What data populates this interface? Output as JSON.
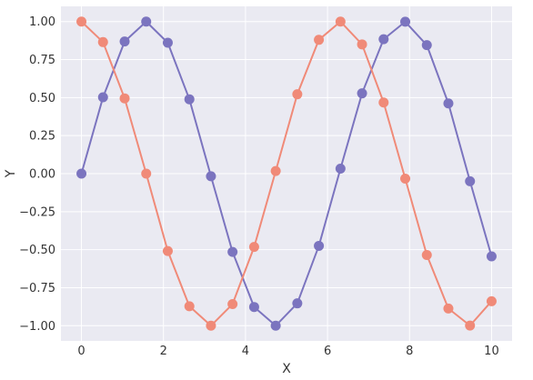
{
  "chart_data": {
    "type": "line",
    "xlabel": "X",
    "ylabel": "Y",
    "xlim": [
      -0.5,
      10.5
    ],
    "ylim": [
      -1.1,
      1.1
    ],
    "x_ticks": [
      0,
      2,
      4,
      6,
      8,
      10
    ],
    "x_tick_labels": [
      "0",
      "2",
      "4",
      "6",
      "8",
      "10"
    ],
    "y_ticks": [
      1.0,
      0.75,
      0.5,
      0.25,
      0.0,
      -0.25,
      -0.5,
      -0.75,
      -1.0
    ],
    "y_tick_labels": [
      "1.00",
      "0.75",
      "0.50",
      "0.25",
      "0.00",
      "−0.25",
      "−0.50",
      "−0.75",
      "−1.00"
    ],
    "grid": true,
    "background": "#eaeaf2",
    "x": [
      0.0,
      0.526,
      1.053,
      1.579,
      2.105,
      2.632,
      3.158,
      3.684,
      4.211,
      4.737,
      5.263,
      5.789,
      6.316,
      6.842,
      7.368,
      7.895,
      8.421,
      8.947,
      9.474,
      10.0
    ],
    "series": [
      {
        "color": "#7b74bf",
        "values": [
          0.0,
          0.502,
          0.869,
          1.0,
          0.861,
          0.489,
          -0.017,
          -0.515,
          -0.877,
          -1.0,
          -0.853,
          -0.475,
          0.033,
          0.528,
          0.884,
          0.999,
          0.845,
          0.462,
          -0.05,
          -0.544
        ]
      },
      {
        "color": "#f08a78",
        "values": [
          1.0,
          0.865,
          0.495,
          0.0,
          -0.509,
          -0.872,
          -1.0,
          -0.858,
          -0.482,
          0.017,
          0.522,
          0.88,
          1.0,
          0.85,
          0.468,
          -0.033,
          -0.535,
          -0.887,
          -0.999,
          -0.839
        ]
      }
    ]
  }
}
